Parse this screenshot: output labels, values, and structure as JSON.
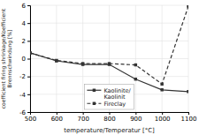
{
  "chart_data": {
    "type": "line",
    "xlabel": "temperature/Temperatur [°C]",
    "ylabel": "coefficient firing shrinkage/Koefficient\nBrennschwindung [%]",
    "x": [
      500,
      600,
      700,
      800,
      900,
      1000,
      1100
    ],
    "series": [
      {
        "name": "Kaolinite/\nKaolinit",
        "color": "#333333",
        "line_style": "solid",
        "marker": "square",
        "values": [
          0.65,
          -0.25,
          -0.65,
          -0.65,
          -2.3,
          -3.5,
          -3.7
        ]
      },
      {
        "name": "Fireclay",
        "color": "#333333",
        "line_style": "dashed",
        "marker": "square",
        "values": [
          0.65,
          -0.2,
          -0.55,
          -0.55,
          -0.7,
          -2.85,
          5.9
        ]
      }
    ],
    "xlim": [
      500,
      1100
    ],
    "ylim": [
      -6,
      6
    ],
    "xticks": [
      500,
      600,
      700,
      800,
      900,
      1000,
      1100
    ],
    "yticks": [
      -6,
      -4,
      -2,
      0,
      2,
      4,
      6
    ],
    "grid": true,
    "legend": "lower center"
  }
}
